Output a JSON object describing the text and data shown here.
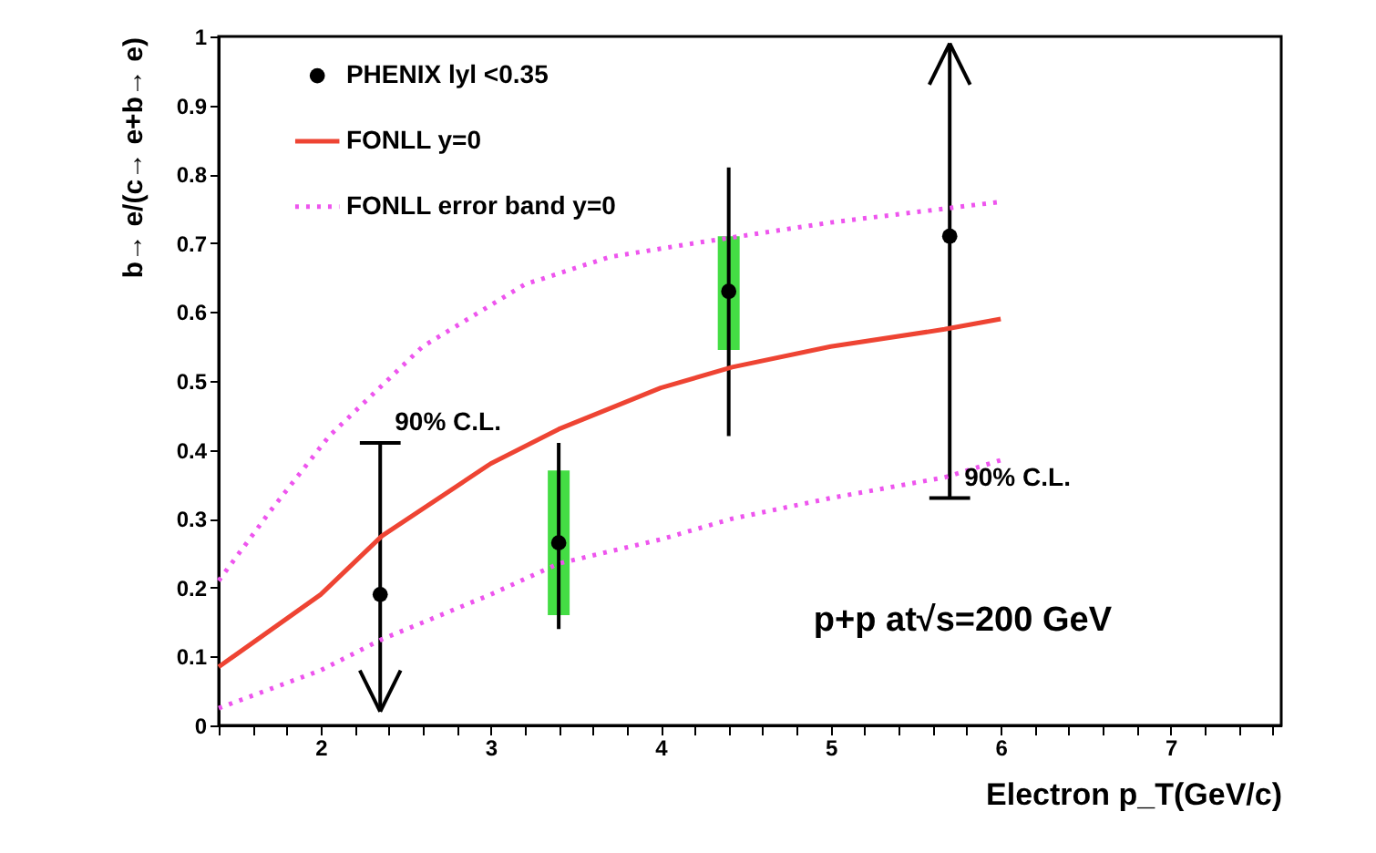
{
  "chart_data": {
    "type": "scatter",
    "xlabel": "Electron p_T(GeV/c)",
    "ylabel": "b→ e/(c→ e+b→ e)",
    "xlim": [
      1.4,
      7.65
    ],
    "ylim": [
      0,
      1
    ],
    "xticks": [
      {
        "value": 1.4,
        "label": null
      },
      {
        "value": 1.6,
        "label": null
      },
      {
        "value": 1.8,
        "label": null
      },
      2,
      {
        "value": 2.2,
        "label": null
      },
      {
        "value": 2.4,
        "label": null
      },
      {
        "value": 2.6,
        "label": null
      },
      {
        "value": 2.8,
        "label": null
      },
      3,
      {
        "value": 3.2,
        "label": null
      },
      {
        "value": 3.4,
        "label": null
      },
      {
        "value": 3.6,
        "label": null
      },
      {
        "value": 3.8,
        "label": null
      },
      4,
      {
        "value": 4.2,
        "label": null
      },
      {
        "value": 4.4,
        "label": null
      },
      {
        "value": 4.6,
        "label": null
      },
      {
        "value": 4.8,
        "label": null
      },
      5,
      {
        "value": 5.2,
        "label": null
      },
      {
        "value": 5.4,
        "label": null
      },
      {
        "value": 5.6,
        "label": null
      },
      {
        "value": 5.8,
        "label": null
      },
      6,
      {
        "value": 6.2,
        "label": null
      },
      {
        "value": 6.4,
        "label": null
      },
      {
        "value": 6.6,
        "label": null
      },
      {
        "value": 6.8,
        "label": null
      },
      7,
      {
        "value": 7.2,
        "label": null
      },
      {
        "value": 7.4,
        "label": null
      },
      {
        "value": 7.6,
        "label": null
      }
    ],
    "yticks": [
      0,
      0.1,
      0.2,
      0.3,
      0.4,
      0.5,
      0.6,
      0.7,
      0.8,
      0.9,
      1
    ],
    "grid": false,
    "legend": "top left",
    "series": [
      {
        "type": "bar",
        "color": "#44dd44",
        "x": [
          3.4,
          4.4
        ],
        "base": [
          0.16,
          0.545
        ],
        "values": [
          0.21,
          0.165
        ]
      },
      {
        "name": "PHENIX lyl <0.35",
        "color": "#000000",
        "marker": "circle",
        "x": [
          2.35,
          3.4,
          4.4,
          5.7
        ],
        "values": [
          0.19,
          0.265,
          0.63,
          0.71
        ],
        "errors": [
          [
            0.02,
            0.41
          ],
          [
            0.14,
            0.41
          ],
          [
            0.42,
            0.81
          ],
          [
            0.33,
            0.99
          ]
        ]
      },
      {
        "type": "line",
        "name": "FONLL y=0",
        "color": "#ee4433",
        "line_style": "solid",
        "x": [
          1.4,
          2,
          2.36,
          3,
          3.4,
          4,
          4.42,
          5,
          5.67,
          6
        ],
        "values": [
          0.085,
          0.19,
          0.275,
          0.38,
          0.43,
          0.49,
          0.52,
          0.55,
          0.575,
          0.59
        ]
      },
      {
        "type": "line",
        "name": "FONLL error band y=0",
        "color": "#ee55ee",
        "line_style": "dotted",
        "x": [
          1.4,
          1.7,
          2.05,
          2.6,
          3.2,
          3.7,
          4.2,
          5,
          6
        ],
        "values": [
          0.21,
          0.31,
          0.42,
          0.55,
          0.64,
          0.68,
          0.7,
          0.73,
          0.76
        ]
      },
      {
        "type": "line",
        "color": "#ee55ee",
        "line_style": "dotted",
        "x": [
          1.4,
          2,
          2.36,
          3,
          3.4,
          4,
          4.42,
          5,
          5.67,
          6
        ],
        "values": [
          0.025,
          0.08,
          0.125,
          0.19,
          0.235,
          0.27,
          0.3,
          0.33,
          0.36,
          0.385
        ]
      }
    ],
    "annotations": [
      {
        "text": "90% C.L.",
        "x": 2.35,
        "y": 0.41
      },
      {
        "text": "90% C.L.",
        "x": 5.7,
        "y": 0.33
      },
      "p+p at√s=200 GeV"
    ]
  }
}
